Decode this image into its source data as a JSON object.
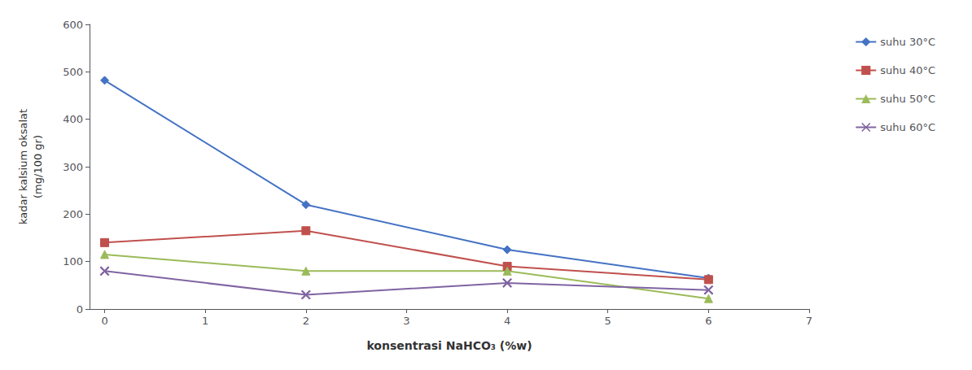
{
  "chart_data": {
    "type": "line",
    "x": [
      0,
      2,
      4,
      6
    ],
    "series": [
      {
        "name": "suhu 30°C",
        "color": "#4472C4",
        "marker": "diamond",
        "values": [
          482,
          220,
          125,
          65
        ]
      },
      {
        "name": "suhu 40°C",
        "color": "#C0504D",
        "marker": "square",
        "values": [
          140,
          165,
          90,
          62
        ]
      },
      {
        "name": "suhu 50°C",
        "color": "#9BBB59",
        "marker": "triangle",
        "values": [
          115,
          80,
          80,
          22
        ]
      },
      {
        "name": "suhu 60°C",
        "color": "#8064A2",
        "marker": "x",
        "values": [
          80,
          30,
          55,
          40
        ]
      }
    ],
    "xlabel": "konsentrasi NaHCO₃ (%w)",
    "ylabel": "kadar kalsium oksalat\n(mg/100 gr)",
    "xlim": [
      -0.15,
      7
    ],
    "ylim": [
      0,
      600
    ],
    "xticks": [
      0,
      1,
      2,
      3,
      4,
      5,
      6,
      7
    ],
    "yticks": [
      0,
      100,
      200,
      300,
      400,
      500,
      600
    ],
    "grid": false,
    "legend": "right"
  }
}
